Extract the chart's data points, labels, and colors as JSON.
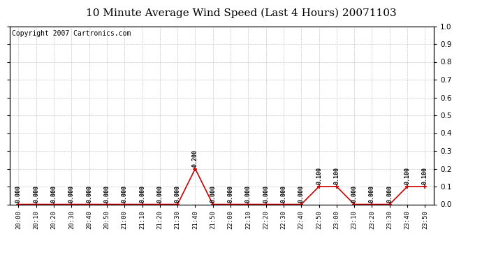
{
  "title": "10 Minute Average Wind Speed (Last 4 Hours) 20071103",
  "copyright_text": "Copyright 2007 Cartronics.com",
  "x_labels": [
    "20:00",
    "20:10",
    "20:20",
    "20:30",
    "20:40",
    "20:50",
    "21:00",
    "21:10",
    "21:20",
    "21:30",
    "21:40",
    "21:50",
    "22:00",
    "22:10",
    "22:20",
    "22:30",
    "22:40",
    "22:50",
    "23:00",
    "23:10",
    "23:20",
    "23:30",
    "23:40",
    "23:50"
  ],
  "y_values": [
    0.0,
    0.0,
    0.0,
    0.0,
    0.0,
    0.0,
    0.0,
    0.0,
    0.0,
    0.0,
    0.2,
    0.0,
    0.0,
    0.0,
    0.0,
    0.0,
    0.0,
    0.1,
    0.1,
    0.0,
    0.0,
    0.0,
    0.1,
    0.1
  ],
  "line_color": "#cc0000",
  "marker_color": "#cc0000",
  "grid_color": "#c8c8c8",
  "bg_color": "#ffffff",
  "ylim": [
    0.0,
    1.0
  ],
  "yticks": [
    0.0,
    0.1,
    0.2,
    0.3,
    0.4,
    0.5,
    0.6,
    0.7,
    0.8,
    0.9,
    1.0
  ],
  "title_fontsize": 11,
  "tick_fontsize": 6.5,
  "annotation_fontsize": 6,
  "copyright_fontsize": 7
}
